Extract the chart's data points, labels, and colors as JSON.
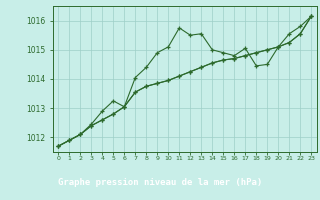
{
  "title": "Graphe pression niveau de la mer (hPa)",
  "xlabel_hours": [
    0,
    1,
    2,
    3,
    4,
    5,
    6,
    7,
    8,
    9,
    10,
    11,
    12,
    13,
    14,
    15,
    16,
    17,
    18,
    19,
    20,
    21,
    22,
    23
  ],
  "line1": [
    1011.7,
    1011.9,
    1012.1,
    1012.4,
    1012.6,
    1012.8,
    1013.05,
    1014.05,
    1014.4,
    1014.9,
    1015.1,
    1015.75,
    1015.5,
    1015.55,
    1015.0,
    1014.9,
    1014.8,
    1015.05,
    1014.45,
    1014.5,
    1015.1,
    1015.55,
    1015.8,
    1016.15
  ],
  "line2": [
    1011.7,
    1011.9,
    1012.1,
    1012.4,
    1012.6,
    1012.8,
    1013.05,
    1013.55,
    1013.75,
    1013.85,
    1013.95,
    1014.1,
    1014.25,
    1014.4,
    1014.55,
    1014.65,
    1014.7,
    1014.8,
    1014.9,
    1015.0,
    1015.1,
    1015.25,
    1015.55,
    1016.15
  ],
  "line3": [
    1011.7,
    1011.9,
    1012.1,
    1012.45,
    1012.9,
    1013.25,
    1013.05,
    1013.55,
    1013.75,
    1013.85,
    1013.95,
    1014.1,
    1014.25,
    1014.4,
    1014.55,
    1014.65,
    1014.7,
    1014.8,
    1014.9,
    1015.0,
    1015.1,
    1015.25,
    1015.55,
    1016.15
  ],
  "ylim": [
    1011.5,
    1016.5
  ],
  "yticks": [
    1012,
    1013,
    1014,
    1015,
    1016
  ],
  "line_color": "#2d6a2d",
  "bg_color": "#c8eee8",
  "grid_color": "#9ecfc8",
  "title_bg": "#2d6a2d",
  "title_fg": "#ffffff"
}
